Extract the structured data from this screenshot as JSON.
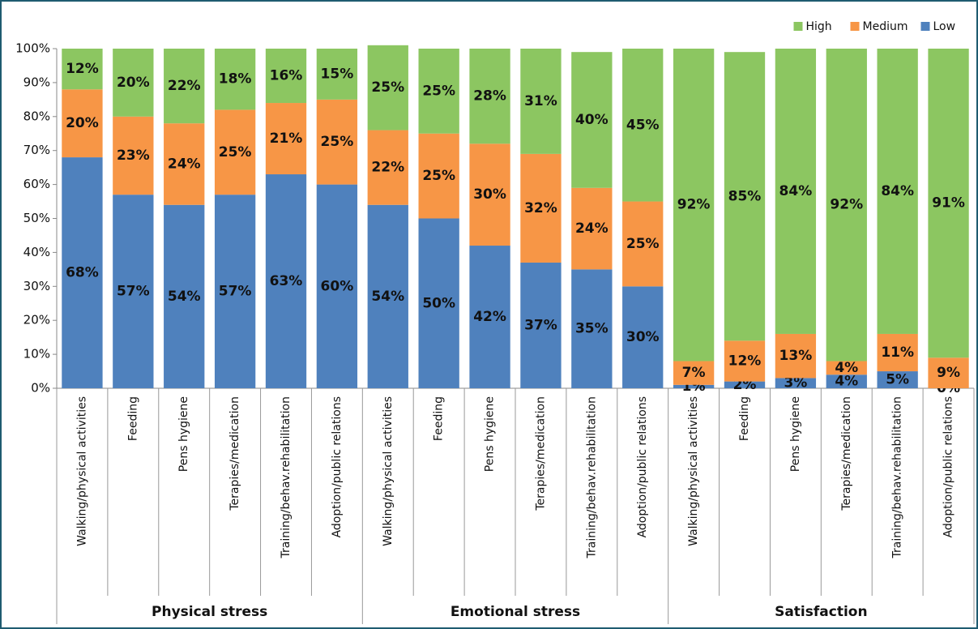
{
  "chart_data": {
    "type": "stacked_bar",
    "categories": [
      "Walking/physical activities",
      "Feeding",
      "Pens hygiene",
      "Terapies/medication",
      "Training/behav.rehabilitation",
      "Adoption/public relations",
      "Walking/physical activities",
      "Feeding",
      "Pens hygiene",
      "Terapies/medication",
      "Training/behav.rehabilitation",
      "Adoption/public relations",
      "Walking/physical activities",
      "Feeding",
      "Pens hygiene",
      "Terapies/medication",
      "Training/behav.rehabilitation",
      "Adoption/public relations"
    ],
    "groups": [
      "Physical stress",
      "Emotional stress",
      "Satisfaction"
    ],
    "series": [
      {
        "name": "Low",
        "color": "#4f81bd",
        "values": [
          68,
          57,
          54,
          57,
          63,
          60,
          54,
          50,
          42,
          37,
          35,
          30,
          1,
          2,
          3,
          4,
          5,
          0
        ],
        "value_labels": [
          "68%",
          "57%",
          "54%",
          "57%",
          "63%",
          "60%",
          "54%",
          "50%",
          "42%",
          "37%",
          "35%",
          "30%",
          "1%",
          "2%",
          "3%",
          "4%",
          "5%",
          "0%"
        ]
      },
      {
        "name": "Medium",
        "color": "#f79646",
        "values": [
          20,
          23,
          24,
          25,
          21,
          25,
          22,
          25,
          30,
          32,
          24,
          25,
          7,
          12,
          13,
          4,
          11,
          9
        ],
        "value_labels": [
          "20%",
          "23%",
          "24%",
          "25%",
          "21%",
          "25%",
          "22%",
          "25%",
          "30%",
          "32%",
          "24%",
          "25%",
          "7%",
          "12%",
          "13%",
          "4%",
          "11%",
          "9%"
        ]
      },
      {
        "name": "High",
        "color": "#8cc661",
        "values": [
          12,
          20,
          22,
          18,
          16,
          15,
          25,
          25,
          28,
          31,
          40,
          45,
          92,
          85,
          84,
          92,
          84,
          91
        ],
        "value_labels": [
          "12%",
          "20%",
          "22%",
          "18%",
          "16%",
          "15%",
          "25%",
          "25%",
          "28%",
          "31%",
          "40%",
          "45%",
          "92%",
          "85%",
          "84%",
          "92%",
          "84%",
          "91%"
        ]
      }
    ],
    "ylim": [
      0,
      100
    ],
    "yticks": [
      {
        "value": 0,
        "label": "0%"
      },
      {
        "value": 10,
        "label": "10%"
      },
      {
        "value": 20,
        "label": "20%"
      },
      {
        "value": 30,
        "label": "30%"
      },
      {
        "value": 40,
        "label": "40%"
      },
      {
        "value": 50,
        "label": "50%"
      },
      {
        "value": 60,
        "label": "60%"
      },
      {
        "value": 70,
        "label": "70%"
      },
      {
        "value": 80,
        "label": "80%"
      },
      {
        "value": 90,
        "label": "90%"
      },
      {
        "value": 100,
        "label": "100%"
      }
    ],
    "legend": "top-right",
    "grid": false
  }
}
